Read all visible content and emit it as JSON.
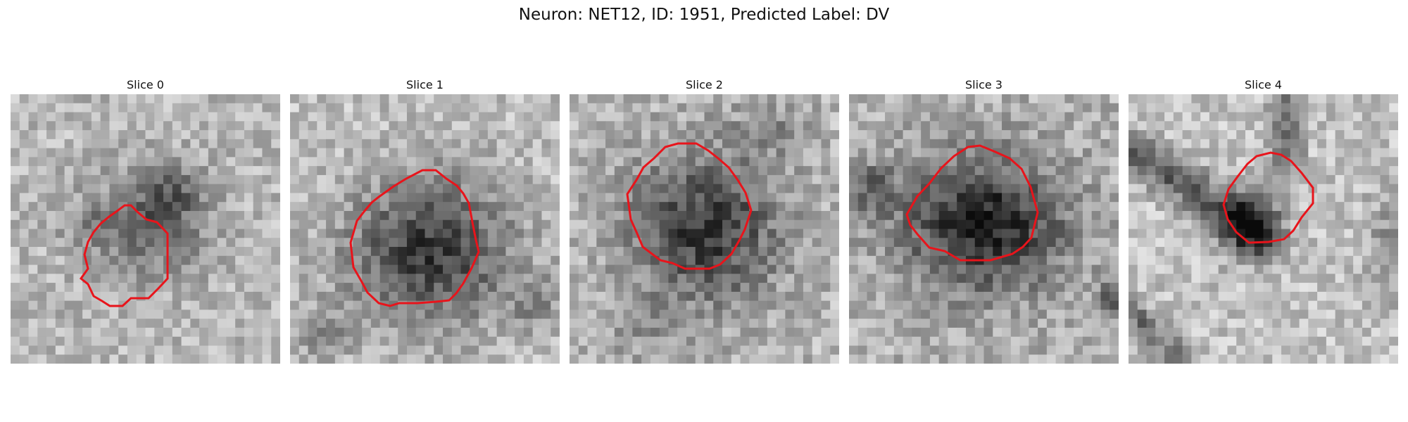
{
  "figure": {
    "title": "Neuron: NET12, ID: 1951, Predicted Label: DV"
  },
  "panels": [
    {
      "title": "Slice 0"
    },
    {
      "title": "Slice 1"
    },
    {
      "title": "Slice 2"
    },
    {
      "title": "Slice 3"
    },
    {
      "title": "Slice 4"
    }
  ],
  "colors": {
    "contour": "#e8141b",
    "background": "#ffffff"
  }
}
